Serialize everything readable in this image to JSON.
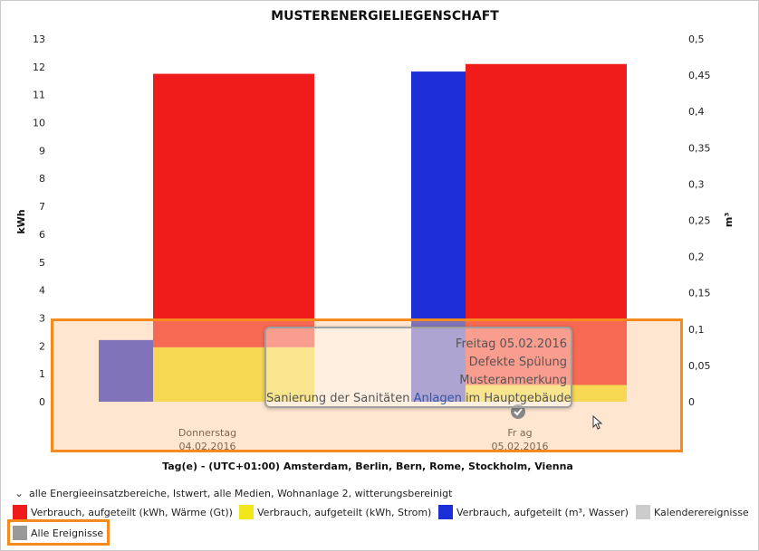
{
  "chart_data": {
    "type": "bar",
    "title": "MUSTERENERGIELIEGENSCHAFT",
    "xlabel": "Tag(e) - (UTC+01:00) Amsterdam, Berlin, Bern, Rome, Stockholm, Vienna",
    "ylabel_left": "kWh",
    "ylabel_right": "m³",
    "ylim_left": [
      0,
      13
    ],
    "ylim_right": [
      0,
      0.5
    ],
    "yticks_left": [
      "13",
      "12",
      "11",
      "10",
      "9",
      "8",
      "7",
      "6",
      "5",
      "4",
      "3",
      "2",
      "1",
      "0"
    ],
    "yticks_right": [
      "0,5",
      "0,45",
      "0,4",
      "0,35",
      "0,3",
      "0,25",
      "0,2",
      "0,15",
      "0,1",
      "0,05",
      "0"
    ],
    "categories": [
      {
        "day": "Donnerstag",
        "date": "04.02.2016"
      },
      {
        "day": "Freitag",
        "date": "05.02.2016"
      }
    ],
    "category_labels_shown": [
      {
        "line1": "Donnerstag",
        "line2": "04.02.2016"
      },
      {
        "line1": "Fr  ag",
        "line2": "05.02.2016"
      }
    ],
    "series": [
      {
        "name": "Verbrauch, aufgeteilt (m³, Wasser)",
        "axis": "right",
        "color": "#1c2fd6",
        "values": [
          0.085,
          0.455
        ]
      },
      {
        "name": "Verbrauch, aufgeteilt (kWh, Strom)",
        "axis": "left",
        "stack": "kwh",
        "color": "#f0e61a",
        "values": [
          1.95,
          0.6
        ]
      },
      {
        "name": "Verbrauch, aufgeteilt (kWh, Wärme (Gt))",
        "axis": "left",
        "stack": "kwh",
        "color": "#f01c1c",
        "values": [
          9.8,
          11.5
        ]
      }
    ],
    "grid": false
  },
  "tooltip": {
    "line1": "Freitag 05.02.2016",
    "line2": "Defekte Spülung",
    "line3": "Musteranmerkung",
    "line4a": "Sanierung der Sanitäten ",
    "line4b": "Anlagen",
    "line4c": " im Hauptgebäude"
  },
  "legend": {
    "group_label": "alle Energieeinsatzbereiche, Istwert, alle Medien, Wohnanlage 2, witterungsbereinigt",
    "items": [
      {
        "label": "Verbrauch, aufgeteilt (kWh, Wärme (Gt))",
        "color": "#f01c1c"
      },
      {
        "label": "Verbrauch, aufgeteilt (kWh, Strom)",
        "color": "#f0e61a"
      },
      {
        "label": "Verbrauch, aufgeteilt (m³, Wasser)",
        "color": "#1c2fd6"
      },
      {
        "label": "Kalenderereignisse",
        "color": "#cccccc"
      },
      {
        "label": "Alle Ereignisse",
        "color": "#999999"
      }
    ]
  }
}
